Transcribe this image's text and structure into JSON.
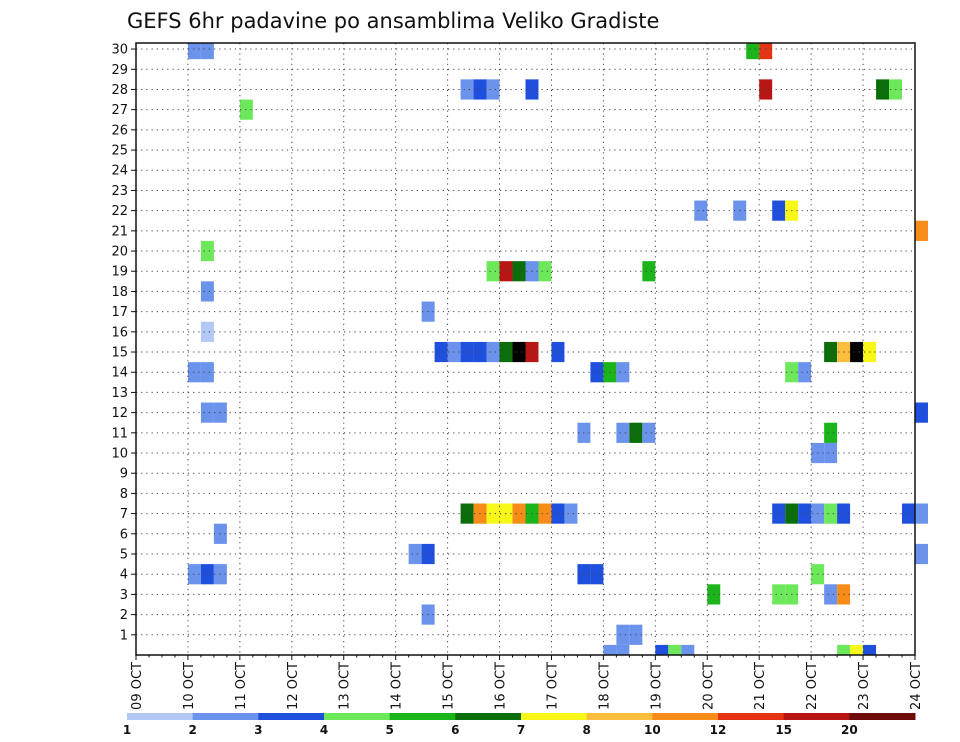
{
  "chart_data": {
    "type": "heatmap",
    "title": "GEFS 6hr padavine po ansamblima Veliko Gradiste",
    "x_ticks": [
      "09 OCT",
      "10 OCT",
      "11 OCT",
      "12 OCT",
      "13 OCT",
      "14 OCT",
      "15 OCT",
      "16 OCT",
      "17 OCT",
      "18 OCT",
      "19 OCT",
      "20 OCT",
      "21 OCT",
      "22 OCT",
      "23 OCT",
      "24 OCT"
    ],
    "y_ticks": [
      "1",
      "2",
      "3",
      "4",
      "5",
      "6",
      "7",
      "8",
      "9",
      "10",
      "11",
      "12",
      "13",
      "14",
      "15",
      "16",
      "17",
      "18",
      "19",
      "20",
      "21",
      "22",
      "23",
      "24",
      "25",
      "26",
      "27",
      "28",
      "29",
      "30"
    ],
    "x_range_days": [
      0,
      15
    ],
    "y_range": [
      0,
      30
    ],
    "grid": true,
    "colorbar": {
      "colors": [
        "#b3c8f5",
        "#6b93ec",
        "#1e50dd",
        "#6de85b",
        "#1bb51b",
        "#0b6e0b",
        "#f7f71a",
        "#fbbd3c",
        "#f88c18",
        "#e53413",
        "#b81515",
        "#6e0b0b"
      ],
      "labels": [
        "1",
        "2",
        "3",
        "4",
        "5",
        "6",
        "7",
        "8",
        "10",
        "12",
        "15",
        "20"
      ]
    },
    "cells": [
      [
        30,
        1,
        1
      ],
      [
        30,
        1.25,
        1
      ],
      [
        30,
        11.75,
        4
      ],
      [
        30,
        12,
        9
      ],
      [
        28,
        6.25,
        1
      ],
      [
        28,
        6.5,
        2
      ],
      [
        28,
        6.75,
        1
      ],
      [
        28,
        7.5,
        2
      ],
      [
        28,
        12,
        10
      ],
      [
        28,
        14.25,
        5
      ],
      [
        28,
        14.5,
        3
      ],
      [
        27,
        2,
        3
      ],
      [
        22,
        10.75,
        1
      ],
      [
        22,
        11.5,
        1
      ],
      [
        22,
        12.25,
        2
      ],
      [
        22,
        12.5,
        6
      ],
      [
        21,
        15,
        8
      ],
      [
        20,
        1.25,
        3
      ],
      [
        19,
        6.75,
        3
      ],
      [
        19,
        7,
        10
      ],
      [
        19,
        7.25,
        5
      ],
      [
        19,
        7.5,
        1
      ],
      [
        19,
        7.75,
        3
      ],
      [
        19,
        9.75,
        4
      ],
      [
        18,
        1.25,
        1
      ],
      [
        17,
        5.5,
        1
      ],
      [
        16,
        1.25,
        0
      ],
      [
        15,
        5.75,
        2
      ],
      [
        15,
        6,
        1
      ],
      [
        15,
        6.25,
        2
      ],
      [
        15,
        6.5,
        2
      ],
      [
        15,
        6.75,
        1
      ],
      [
        15,
        7,
        5
      ],
      [
        15,
        7.25,
        12
      ],
      [
        15,
        7.5,
        10
      ],
      [
        15,
        8,
        2
      ],
      [
        15,
        13.25,
        5
      ],
      [
        15,
        13.5,
        7
      ],
      [
        15,
        13.75,
        12
      ],
      [
        15,
        14,
        6
      ],
      [
        14,
        1,
        1
      ],
      [
        14,
        1.25,
        1
      ],
      [
        14,
        8.75,
        2
      ],
      [
        14,
        9,
        4
      ],
      [
        14,
        9.25,
        1
      ],
      [
        14,
        12.5,
        3
      ],
      [
        14,
        12.75,
        1
      ],
      [
        12,
        1.25,
        1
      ],
      [
        12,
        1.5,
        1
      ],
      [
        12,
        15,
        2
      ],
      [
        11,
        8.5,
        1
      ],
      [
        11,
        9.25,
        1
      ],
      [
        11,
        9.5,
        5
      ],
      [
        11,
        9.75,
        1
      ],
      [
        11,
        13.25,
        4
      ],
      [
        10,
        13,
        1
      ],
      [
        10,
        13.25,
        1
      ],
      [
        7,
        6.25,
        5
      ],
      [
        7,
        6.5,
        8
      ],
      [
        7,
        6.75,
        6
      ],
      [
        7,
        7,
        6
      ],
      [
        7,
        7.25,
        8
      ],
      [
        7,
        7.5,
        4
      ],
      [
        7,
        7.75,
        8
      ],
      [
        7,
        8,
        2
      ],
      [
        7,
        8.25,
        1
      ],
      [
        7,
        12.25,
        2
      ],
      [
        7,
        12.5,
        5
      ],
      [
        7,
        12.75,
        2
      ],
      [
        7,
        13,
        1
      ],
      [
        7,
        13.25,
        3
      ],
      [
        7,
        13.5,
        2
      ],
      [
        7,
        14.75,
        2
      ],
      [
        7,
        15,
        1
      ],
      [
        6,
        1.5,
        1
      ],
      [
        5,
        5.25,
        1
      ],
      [
        5,
        5.5,
        2
      ],
      [
        5,
        15,
        1
      ],
      [
        4,
        1,
        1
      ],
      [
        4,
        1.25,
        2
      ],
      [
        4,
        1.5,
        1
      ],
      [
        4,
        8.5,
        2
      ],
      [
        4,
        8.75,
        2
      ],
      [
        4,
        13,
        3
      ],
      [
        3,
        11,
        4
      ],
      [
        3,
        12.25,
        3
      ],
      [
        3,
        12.5,
        3
      ],
      [
        3,
        13.25,
        1
      ],
      [
        3,
        13.5,
        8
      ],
      [
        2,
        5.5,
        1
      ],
      [
        1,
        9.25,
        1
      ],
      [
        1,
        9.5,
        1
      ],
      [
        0,
        9,
        1
      ],
      [
        0,
        9.25,
        1
      ],
      [
        0,
        10,
        2
      ],
      [
        0,
        10.25,
        3
      ],
      [
        0,
        10.5,
        1
      ],
      [
        0,
        13.5,
        3
      ],
      [
        0,
        13.75,
        6
      ],
      [
        0,
        14,
        2
      ]
    ]
  }
}
